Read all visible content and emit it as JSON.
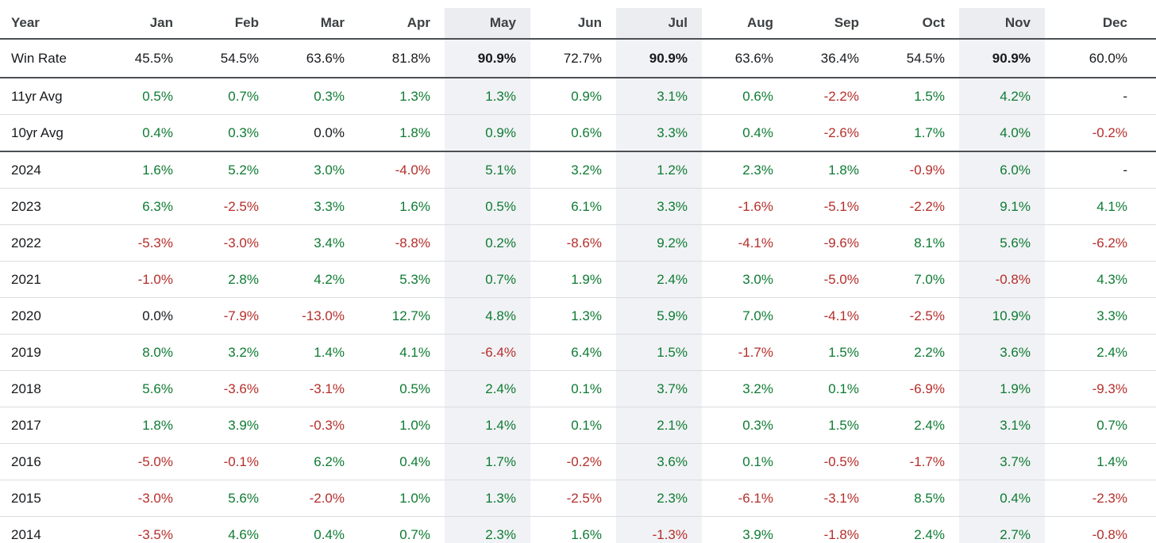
{
  "colors": {
    "positive": "#0e7b33",
    "negative": "#b52e2a",
    "neutral": "#17191c",
    "header_text": "#3c4043",
    "highlight_header_bg": "#ecedf0",
    "highlight_body_bg": "#f1f2f5",
    "dark_border": "#4c5054",
    "light_border": "#dadcdf"
  },
  "table": {
    "columns": [
      "Year",
      "Jan",
      "Feb",
      "Mar",
      "Apr",
      "May",
      "Jun",
      "Jul",
      "Aug",
      "Sep",
      "Oct",
      "Nov",
      "Dec"
    ],
    "highlighted_months": [
      "May",
      "Jul",
      "Nov"
    ],
    "rows": [
      {
        "label": "Win Rate",
        "type": "winrate",
        "values": [
          "45.5%",
          "54.5%",
          "63.6%",
          "81.8%",
          "90.9%",
          "72.7%",
          "90.9%",
          "63.6%",
          "36.4%",
          "54.5%",
          "90.9%",
          "60.0%"
        ]
      },
      {
        "label": "11yr Avg",
        "type": "avg",
        "values": [
          "0.5%",
          "0.7%",
          "0.3%",
          "1.3%",
          "1.3%",
          "0.9%",
          "3.1%",
          "0.6%",
          "-2.2%",
          "1.5%",
          "4.2%",
          "-"
        ]
      },
      {
        "label": "10yr Avg",
        "type": "avg",
        "values": [
          "0.4%",
          "0.3%",
          "0.0%",
          "1.8%",
          "0.9%",
          "0.6%",
          "3.3%",
          "0.4%",
          "-2.6%",
          "1.7%",
          "4.0%",
          "-0.2%"
        ]
      },
      {
        "label": "2024",
        "type": "year",
        "values": [
          "1.6%",
          "5.2%",
          "3.0%",
          "-4.0%",
          "5.1%",
          "3.2%",
          "1.2%",
          "2.3%",
          "1.8%",
          "-0.9%",
          "6.0%",
          "-"
        ]
      },
      {
        "label": "2023",
        "type": "year",
        "values": [
          "6.3%",
          "-2.5%",
          "3.3%",
          "1.6%",
          "0.5%",
          "6.1%",
          "3.3%",
          "-1.6%",
          "-5.1%",
          "-2.2%",
          "9.1%",
          "4.1%"
        ]
      },
      {
        "label": "2022",
        "type": "year",
        "values": [
          "-5.3%",
          "-3.0%",
          "3.4%",
          "-8.8%",
          "0.2%",
          "-8.6%",
          "9.2%",
          "-4.1%",
          "-9.6%",
          "8.1%",
          "5.6%",
          "-6.2%"
        ]
      },
      {
        "label": "2021",
        "type": "year",
        "values": [
          "-1.0%",
          "2.8%",
          "4.2%",
          "5.3%",
          "0.7%",
          "1.9%",
          "2.4%",
          "3.0%",
          "-5.0%",
          "7.0%",
          "-0.8%",
          "4.3%"
        ]
      },
      {
        "label": "2020",
        "type": "year",
        "values": [
          "0.0%",
          "-7.9%",
          "-13.0%",
          "12.7%",
          "4.8%",
          "1.3%",
          "5.9%",
          "7.0%",
          "-4.1%",
          "-2.5%",
          "10.9%",
          "3.3%"
        ]
      },
      {
        "label": "2019",
        "type": "year",
        "values": [
          "8.0%",
          "3.2%",
          "1.4%",
          "4.1%",
          "-6.4%",
          "6.4%",
          "1.5%",
          "-1.7%",
          "1.5%",
          "2.2%",
          "3.6%",
          "2.4%"
        ]
      },
      {
        "label": "2018",
        "type": "year",
        "values": [
          "5.6%",
          "-3.6%",
          "-3.1%",
          "0.5%",
          "2.4%",
          "0.1%",
          "3.7%",
          "3.2%",
          "0.1%",
          "-6.9%",
          "1.9%",
          "-9.3%"
        ]
      },
      {
        "label": "2017",
        "type": "year",
        "values": [
          "1.8%",
          "3.9%",
          "-0.3%",
          "1.0%",
          "1.4%",
          "0.1%",
          "2.1%",
          "0.3%",
          "1.5%",
          "2.4%",
          "3.1%",
          "0.7%"
        ]
      },
      {
        "label": "2016",
        "type": "year",
        "values": [
          "-5.0%",
          "-0.1%",
          "6.2%",
          "0.4%",
          "1.7%",
          "-0.2%",
          "3.6%",
          "0.1%",
          "-0.5%",
          "-1.7%",
          "3.7%",
          "1.4%"
        ]
      },
      {
        "label": "2015",
        "type": "year",
        "values": [
          "-3.0%",
          "5.6%",
          "-2.0%",
          "1.0%",
          "1.3%",
          "-2.5%",
          "2.3%",
          "-6.1%",
          "-3.1%",
          "8.5%",
          "0.4%",
          "-2.3%"
        ]
      },
      {
        "label": "2014",
        "type": "year",
        "values": [
          "-3.5%",
          "4.6%",
          "0.4%",
          "0.7%",
          "2.3%",
          "1.6%",
          "-1.3%",
          "3.9%",
          "-1.8%",
          "2.4%",
          "2.7%",
          "-0.8%"
        ]
      }
    ]
  }
}
